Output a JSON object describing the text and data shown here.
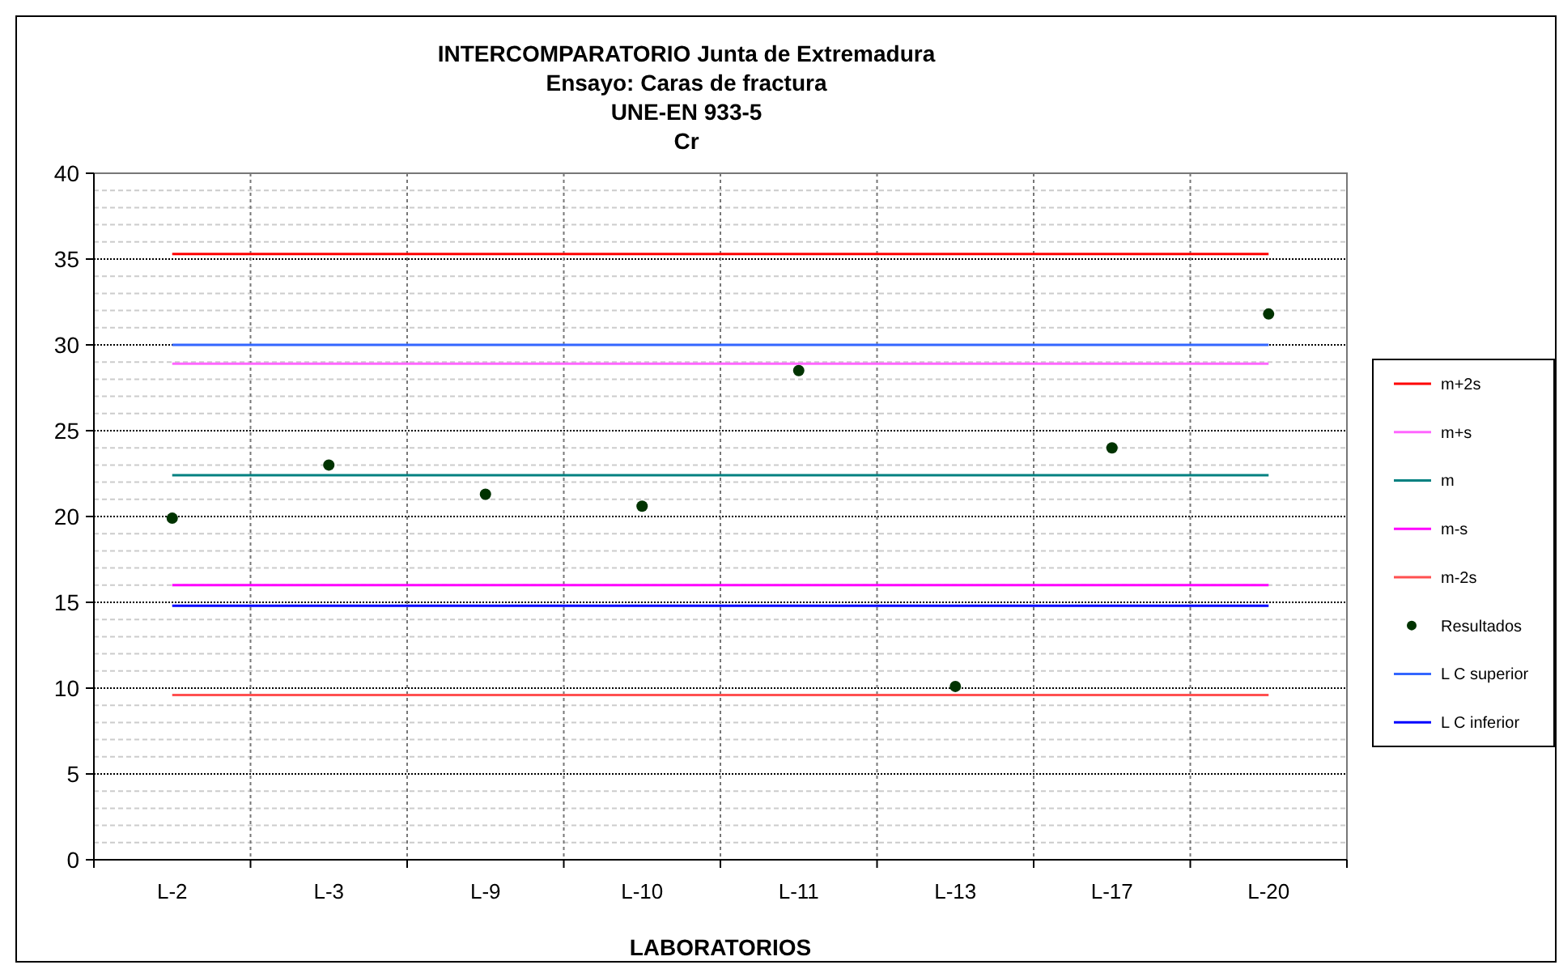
{
  "chart_data": {
    "type": "line",
    "title": "INTERCOMPARATORIO Junta de Extremadura\nEnsayo: Caras de fractura\nUNE-EN 933-5\nCr",
    "xlabel": "LABORATORIOS",
    "categories": [
      "L-2",
      "L-3",
      "L-9",
      "L-10",
      "L-11",
      "L-13",
      "L-17",
      "L-20"
    ],
    "series": [
      {
        "name": "m+2s",
        "color": "#ff0000",
        "values": [
          35.3,
          35.3,
          35.3,
          35.3,
          35.3,
          35.3,
          35.3,
          35.3
        ]
      },
      {
        "name": "m+s",
        "color": "#ff66ff",
        "values": [
          28.9,
          28.9,
          28.9,
          28.9,
          28.9,
          28.9,
          28.9,
          28.9
        ]
      },
      {
        "name": "m",
        "color": "#008080",
        "values": [
          22.4,
          22.4,
          22.4,
          22.4,
          22.4,
          22.4,
          22.4,
          22.4
        ]
      },
      {
        "name": "m-s",
        "color": "#ff00ff",
        "values": [
          16,
          16,
          16,
          16,
          16,
          16,
          16,
          16
        ]
      },
      {
        "name": "m-2s",
        "color": "#ff5050",
        "values": [
          9.6,
          9.6,
          9.6,
          9.6,
          9.6,
          9.6,
          9.6,
          9.6
        ]
      },
      {
        "name": "Resultados",
        "type": "scatter",
        "marker": "circle",
        "color": "#003300",
        "values": [
          19.9,
          23.0,
          21.3,
          20.6,
          28.5,
          10.1,
          24.0,
          31.8
        ]
      },
      {
        "name": "L C superior",
        "color": "#3366ff",
        "values": [
          30,
          30,
          30,
          30,
          30,
          30,
          30,
          30
        ]
      },
      {
        "name": "L C inferior",
        "color": "#0000ff",
        "values": [
          14.8,
          14.8,
          14.8,
          14.8,
          14.8,
          14.8,
          14.8,
          14.8
        ]
      }
    ],
    "ylim": [
      0,
      40
    ],
    "yticks": [
      0,
      5,
      10,
      15,
      20,
      25,
      30,
      35,
      40
    ],
    "grid": true,
    "legend": "right",
    "marker": "none"
  }
}
